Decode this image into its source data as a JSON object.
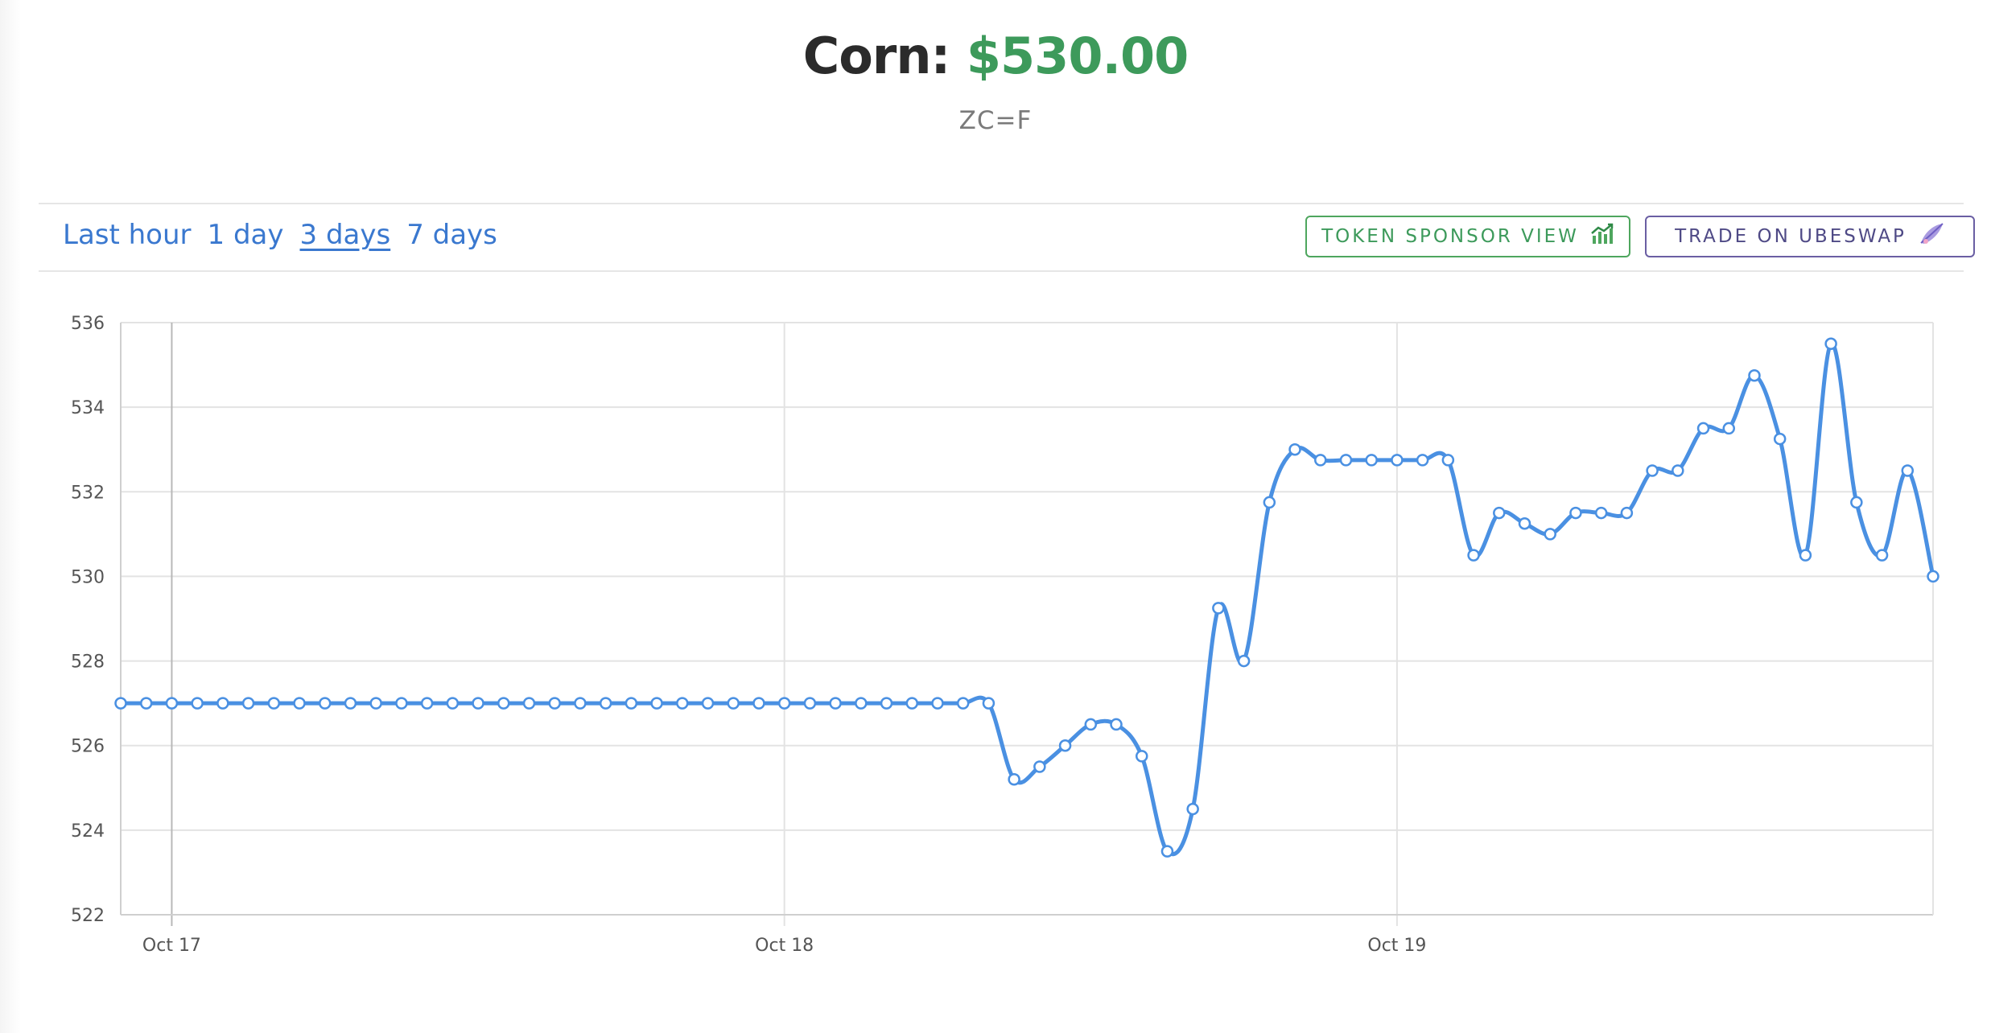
{
  "header": {
    "commodity": "Corn:",
    "price": "$530.00",
    "ticker": "ZC=F"
  },
  "toolbar": {
    "ranges": [
      {
        "label": "Last hour",
        "active": false
      },
      {
        "label": "1 day",
        "active": false
      },
      {
        "label": "3 days",
        "active": true
      },
      {
        "label": "7 days",
        "active": false
      }
    ],
    "sponsor_button": {
      "label": "TOKEN SPONSOR VIEW",
      "icon": "chart-growth-icon",
      "color": "#3d9a5b"
    },
    "trade_button": {
      "label": "TRADE ON UBESWAP",
      "icon": "ubeswap-icon",
      "color": "#4f4a86"
    }
  },
  "chart_data": {
    "type": "line",
    "title": "",
    "xlabel": "",
    "ylabel": "",
    "ylim": [
      522,
      536
    ],
    "y_ticks": [
      "536",
      "534",
      "532",
      "530",
      "528",
      "526",
      "524",
      "522"
    ],
    "x_ticks": [
      "Oct 17",
      "Oct 18",
      "Oct 19"
    ],
    "x_tick_positions": [
      2,
      26,
      50
    ],
    "x_range": [
      0,
      71
    ],
    "grid": true,
    "line_color": "#4a90e2",
    "series": [
      {
        "name": "",
        "values": [
          527,
          527,
          527,
          527,
          527,
          527,
          527,
          527,
          527,
          527,
          527,
          527,
          527,
          527,
          527,
          527,
          527,
          527,
          527,
          527,
          527,
          527,
          527,
          527,
          527,
          527,
          527,
          527,
          527,
          527,
          527,
          527,
          527,
          527,
          527,
          525.2,
          525.5,
          526.0,
          526.5,
          526.5,
          525.75,
          523.5,
          524.5,
          529.25,
          528.0,
          531.75,
          533.0,
          532.75,
          532.75,
          532.75,
          532.75,
          532.75,
          532.75,
          530.5,
          531.5,
          531.25,
          531.0,
          531.5,
          531.5,
          531.5,
          532.5,
          532.5,
          533.5,
          533.5,
          534.75,
          533.25,
          530.5,
          535.5,
          531.75,
          530.5,
          532.5,
          530.0
        ]
      }
    ]
  }
}
